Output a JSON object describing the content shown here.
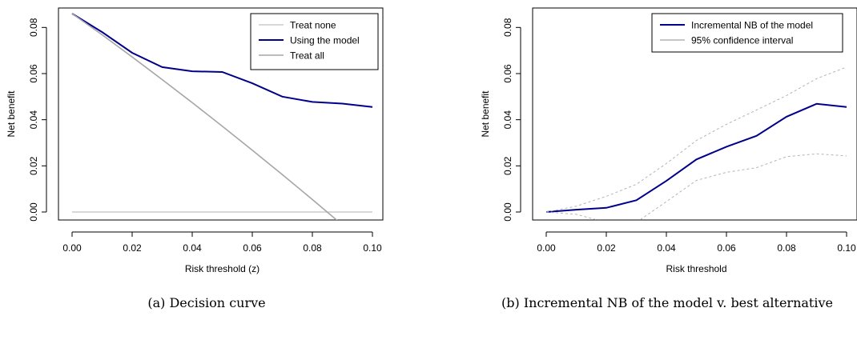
{
  "chart_data": [
    {
      "type": "line",
      "caption": "(a) Decision curve",
      "xlabel": "Risk threshold (z)",
      "ylabel": "Net benefit",
      "xlim": [
        0,
        0.1
      ],
      "ylim": [
        0,
        0.086
      ],
      "x_ticks": [
        "0.00",
        "0.02",
        "0.04",
        "0.06",
        "0.08",
        "0.10"
      ],
      "y_ticks": [
        "0.00",
        "0.02",
        "0.04",
        "0.06",
        "0.08"
      ],
      "legend_position": "top-right",
      "x": [
        0.0,
        0.01,
        0.02,
        0.03,
        0.04,
        0.05,
        0.06,
        0.07,
        0.08,
        0.09,
        0.1
      ],
      "series": [
        {
          "name": "Treat none",
          "color": "#cccccc",
          "style": "solid",
          "values": [
            0,
            0,
            0,
            0,
            0,
            0,
            0,
            0,
            0,
            0,
            0
          ]
        },
        {
          "name": "Using the model",
          "color": "#00008b",
          "style": "solid",
          "values": [
            0.086,
            0.078,
            0.069,
            0.0628,
            0.061,
            0.0607,
            0.0558,
            0.05,
            0.0477,
            0.047,
            0.0455
          ]
        },
        {
          "name": "Treat all",
          "color": "#a6a6a6",
          "style": "solid",
          "values": [
            0.086,
            0.0768,
            0.0672,
            0.0574,
            0.0474,
            0.0372,
            0.0268,
            0.0162,
            0.0054,
            -0.0056,
            null
          ]
        }
      ]
    },
    {
      "type": "line",
      "caption": "(b) Incremental NB of the model v. best alternative",
      "xlabel": "Risk threshold",
      "ylabel": "Net benefit",
      "xlim": [
        0,
        0.1
      ],
      "ylim": [
        0,
        0.086
      ],
      "x_ticks": [
        "0.00",
        "0.02",
        "0.04",
        "0.06",
        "0.08",
        "0.10"
      ],
      "y_ticks": [
        "0.00",
        "0.02",
        "0.04",
        "0.06",
        "0.08"
      ],
      "legend_position": "top-right",
      "x": [
        0.0,
        0.01,
        0.02,
        0.03,
        0.04,
        0.05,
        0.06,
        0.07,
        0.08,
        0.09,
        0.1
      ],
      "series": [
        {
          "name": "Incremental NB of the model",
          "color": "#00008b",
          "style": "solid",
          "values": [
            0.0,
            0.001,
            0.0018,
            0.0051,
            0.0135,
            0.0228,
            0.0283,
            0.033,
            0.0413,
            0.0469,
            0.0455
          ]
        },
        {
          "name": "95% confidence interval",
          "color": "#b3b3b3",
          "style": "dashed",
          "values": [
            0.0,
            0.0025,
            0.0068,
            0.012,
            0.021,
            0.031,
            0.038,
            0.0442,
            0.0505,
            0.0578,
            0.0628
          ]
        },
        {
          "name": "",
          "color": "#b3b3b3",
          "style": "dashed",
          "values": [
            0.0,
            -0.001,
            -0.0045,
            -0.0045,
            0.0045,
            0.0137,
            0.0172,
            0.0192,
            0.024,
            0.0252,
            0.0243
          ]
        }
      ]
    }
  ]
}
